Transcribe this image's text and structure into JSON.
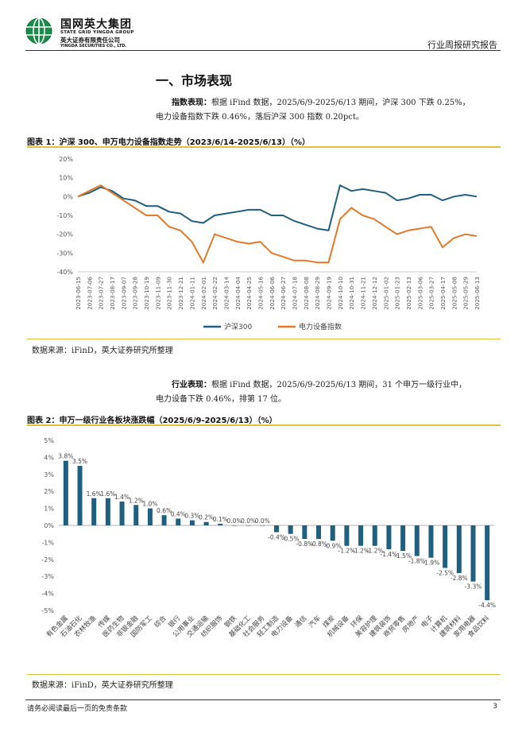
{
  "header": {
    "brand_cn": "国网英大集团",
    "brand_en": "STATE GRID YINGDA GROUP",
    "company_cn": "英大证券有限责任公司",
    "company_en": "YINGDA SECURITIES CO., LTD.",
    "report_type": "行业周报研究报告"
  },
  "section": {
    "title": "一、市场表现"
  },
  "paragraph1": {
    "lead": "指数表现：",
    "line1": "根据 iFind 数据，2025/6/9-2025/6/13 期间，沪深 300 下跌 0.25%，",
    "line2": "电力设备指数下跌 0.46%，落后沪深 300 指数 0.20pct。"
  },
  "figure1": {
    "title": "图表 1：沪深 300、申万电力设备指数走势（2023/6/14-2025/6/13）（%）",
    "source": "数据来源：iFinD，英大证券研究所整理"
  },
  "paragraph2": {
    "lead": "行业表现：",
    "line1": "根据 iFind 数据，2025/6/9-2025/6/13 期间，31 个申万一级行业中，",
    "line2": "电力设备下跌 0.46%，排第 17 位。"
  },
  "figure2": {
    "title": "图表 2：申万一级行业各板块涨跌幅（2025/6/9-2025/6/13）（%）",
    "source": "数据来源：iFinD，英大证券研究所整理"
  },
  "footer": {
    "disclaimer": "请务必阅读最后一页的免责条款",
    "page": "3"
  },
  "colors": {
    "series_hs300": "#1f5f7f",
    "series_power": "#e07a2a",
    "bar": "#1f5f7f",
    "gold_rule": "#e6bf3a"
  },
  "chart_data": [
    {
      "type": "line",
      "title": "",
      "ylim": [
        -40,
        20
      ],
      "yticks": [
        "20%",
        "10%",
        "0%",
        "-10%",
        "-20%",
        "-30%",
        "-40%"
      ],
      "ytick_values": [
        20,
        10,
        0,
        -10,
        -20,
        -30,
        -40
      ],
      "x": [
        "2023-06-15",
        "2023-07-06",
        "2023-07-27",
        "2023-08-17",
        "2023-09-07",
        "2023-09-28",
        "2023-10-19",
        "2023-11-09",
        "2023-11-30",
        "2023-12-21",
        "2024-01-11",
        "2024-02-01",
        "2024-02-22",
        "2024-03-14",
        "2024-04-04",
        "2024-04-25",
        "2024-05-16",
        "2024-06-06",
        "2024-06-27",
        "2024-07-18",
        "2024-08-08",
        "2024-08-29",
        "2024-09-19",
        "2024-10-10",
        "2024-10-31",
        "2024-11-21",
        "2024-12-12",
        "2025-01-02",
        "2025-01-23",
        "2025-02-13",
        "2025-03-06",
        "2025-03-27",
        "2025-04-17",
        "2025-05-08",
        "2025-05-29",
        "2025-06-13"
      ],
      "xticks": [
        "2023-06-15",
        "2023-07-06",
        "2023-07-27",
        "2023-08-17",
        "2023-09-07",
        "2023-09-28",
        "2023-10-19",
        "2023-11-09",
        "2023-11-30",
        "2023-12-21",
        "2024-01-11",
        "2024-02-01",
        "2024-02-22",
        "2024-03-14",
        "2024-04-04",
        "2024-04-25",
        "2024-05-16",
        "2024-06-06",
        "2024-06-27",
        "2024-07-18",
        "2024-08-08",
        "2024-08-29",
        "2024-09-19",
        "2024-10-10",
        "2024-10-31",
        "2024-11-21",
        "2024-12-12",
        "2025-01-02",
        "2025-01-23",
        "2025-02-13",
        "2025-03-06",
        "2025-03-27",
        "2025-04-17",
        "2025-05-08",
        "2025-05-29",
        "2025-06-13"
      ],
      "grid": false,
      "legend": "bottom",
      "series": [
        {
          "name": "沪深300",
          "values": [
            0,
            2,
            5,
            3,
            -1,
            -2,
            -5,
            -5,
            -8,
            -9,
            -13,
            -14,
            -10,
            -9,
            -8,
            -7,
            -7,
            -10,
            -10,
            -13,
            -15,
            -17,
            -18,
            6,
            3,
            4,
            3,
            2,
            -2,
            -1,
            1,
            1,
            -2,
            0,
            1,
            0
          ]
        },
        {
          "name": "电力设备指数",
          "values": [
            0,
            3,
            6,
            2,
            -2,
            -6,
            -10,
            -10,
            -16,
            -18,
            -24,
            -35,
            -20,
            -22,
            -24,
            -25,
            -24,
            -30,
            -32,
            -34,
            -34,
            -35,
            -35,
            -12,
            -6,
            -10,
            -12,
            -16,
            -20,
            -18,
            -17,
            -16,
            -27,
            -22,
            -20,
            -21
          ]
        }
      ]
    },
    {
      "type": "bar",
      "title": "",
      "ylim": [
        -5,
        5
      ],
      "yticks": [
        "5%",
        "4%",
        "3%",
        "2%",
        "1%",
        "0%",
        "-1%",
        "-2%",
        "-3%",
        "-4%",
        "-5%"
      ],
      "ytick_values": [
        5,
        4,
        3,
        2,
        1,
        0,
        -1,
        -2,
        -3,
        -4,
        -5
      ],
      "grid": false,
      "categories": [
        "有色金属",
        "石油石化",
        "农林牧渔",
        "传媒",
        "医药生物",
        "非银金融",
        "国防军工",
        "综合",
        "银行",
        "公用事业",
        "交通运输",
        "纺织服饰",
        "钢铁",
        "基础化工",
        "社会服务",
        "轻工制造",
        "电力设备",
        "通信",
        "汽车",
        "煤炭",
        "机械设备",
        "环保",
        "美容护理",
        "建筑装饰",
        "商贸零售",
        "房地产",
        "电子",
        "计算机",
        "建筑材料",
        "家用电器",
        "食品饮料"
      ],
      "values": [
        3.8,
        3.5,
        1.6,
        1.6,
        1.4,
        1.2,
        1.0,
        0.6,
        0.4,
        0.3,
        0.2,
        0.1,
        0.0,
        0.0,
        0.0,
        -0.4,
        -0.5,
        -0.8,
        -0.8,
        -0.9,
        -1.2,
        -1.2,
        -1.2,
        -1.4,
        -1.5,
        -1.8,
        -1.9,
        -2.5,
        -2.8,
        -3.3,
        -4.4
      ],
      "value_labels": [
        "3.8%",
        "3.5%",
        "1.6%",
        "1.6%",
        "1.4%",
        "1.2%",
        "1.0%",
        "0.6%",
        "0.4%",
        "0.3%",
        "0.2%",
        "0.1%",
        "0.0%",
        "0.0%",
        "0.0%",
        "-0.4%",
        "-0.5%",
        "-0.8%",
        "-0.8%",
        "-0.9%",
        "-1.2%",
        "-1.2%",
        "-1.2%",
        "-1.4%",
        "-1.5%",
        "-1.8%",
        "-1.9%",
        "-2.5%",
        "-2.8%",
        "-3.3%",
        "-4.4%"
      ]
    }
  ]
}
